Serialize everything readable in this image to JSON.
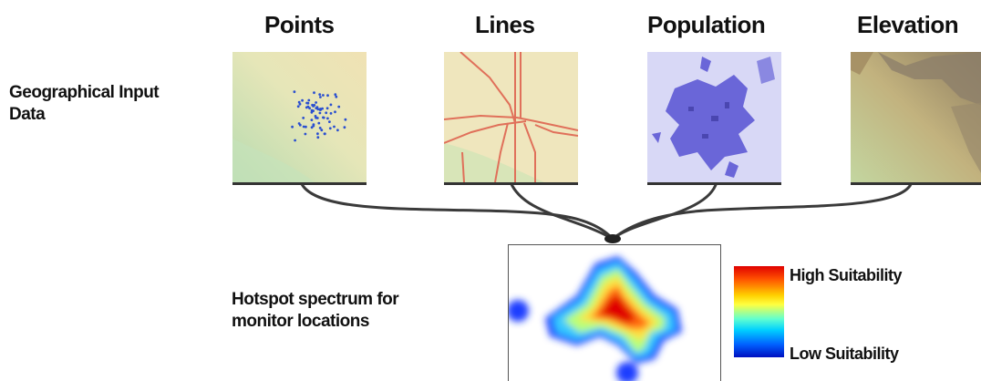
{
  "titles": {
    "points": "Points",
    "lines": "Lines",
    "population": "Population",
    "elevation": "Elevation"
  },
  "input_label": {
    "line1": "Geographical Input",
    "line2": "Data"
  },
  "output_label": {
    "line1": "Hotspot spectrum for",
    "line2": "monitor locations"
  },
  "legend": {
    "high": "High Suitability",
    "low": "Low Suitability"
  },
  "colors": {
    "map_tan": "#eee2b4",
    "map_green": "#c6dfae",
    "point_blue": "#2a4fd0",
    "road_red": "#e0705a",
    "population_bg": "#d8d8f6",
    "population_fill": "#6a66d8",
    "elevation_brown": "#a89a66",
    "connector": "#3a3a3a"
  }
}
